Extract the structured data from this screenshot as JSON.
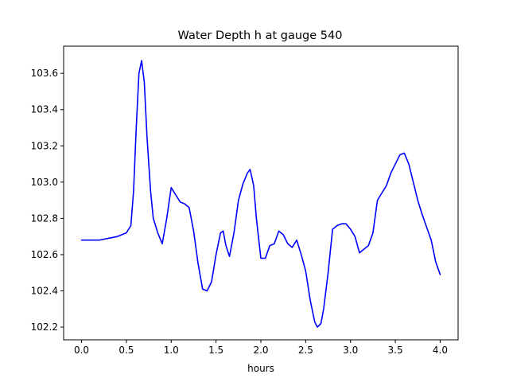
{
  "chart_data": {
    "type": "line",
    "title": "Water Depth h at gauge 540",
    "xlabel": "hours",
    "ylabel": "",
    "xlim": [
      -0.2,
      4.2
    ],
    "ylim": [
      102.13,
      103.75
    ],
    "xticks": [
      0.0,
      0.5,
      1.0,
      1.5,
      2.0,
      2.5,
      3.0,
      3.5,
      4.0
    ],
    "xtick_labels": [
      "0.0",
      "0.5",
      "1.0",
      "1.5",
      "2.0",
      "2.5",
      "3.0",
      "3.5",
      "4.0"
    ],
    "yticks": [
      102.2,
      102.4,
      102.6,
      102.8,
      103.0,
      103.2,
      103.4,
      103.6
    ],
    "ytick_labels": [
      "102.2",
      "102.4",
      "102.6",
      "102.8",
      "103.0",
      "103.2",
      "103.4",
      "103.6"
    ],
    "grid": false,
    "series": [
      {
        "name": "",
        "color": "#0000ff",
        "x": [
          0.0,
          0.2,
          0.3,
          0.4,
          0.5,
          0.55,
          0.58,
          0.61,
          0.64,
          0.67,
          0.7,
          0.73,
          0.77,
          0.8,
          0.85,
          0.9,
          0.95,
          1.0,
          1.05,
          1.1,
          1.15,
          1.2,
          1.25,
          1.3,
          1.35,
          1.4,
          1.45,
          1.5,
          1.55,
          1.58,
          1.61,
          1.65,
          1.7,
          1.75,
          1.8,
          1.85,
          1.88,
          1.92,
          1.95,
          2.0,
          2.05,
          2.1,
          2.15,
          2.2,
          2.25,
          2.3,
          2.35,
          2.4,
          2.45,
          2.5,
          2.55,
          2.6,
          2.63,
          2.67,
          2.7,
          2.75,
          2.8,
          2.85,
          2.9,
          2.95,
          3.0,
          3.05,
          3.1,
          3.15,
          3.2,
          3.25,
          3.3,
          3.35,
          3.4,
          3.45,
          3.5,
          3.55,
          3.6,
          3.65,
          3.7,
          3.75,
          3.8,
          3.85,
          3.9,
          3.95,
          4.0
        ],
        "y": [
          102.68,
          102.68,
          102.69,
          102.7,
          102.72,
          102.76,
          102.95,
          103.3,
          103.6,
          103.67,
          103.55,
          103.25,
          102.95,
          102.8,
          102.72,
          102.66,
          102.8,
          102.97,
          102.93,
          102.89,
          102.88,
          102.86,
          102.73,
          102.55,
          102.41,
          102.4,
          102.45,
          102.6,
          102.72,
          102.73,
          102.65,
          102.59,
          102.72,
          102.9,
          102.99,
          103.05,
          103.07,
          102.98,
          102.8,
          102.58,
          102.58,
          102.65,
          102.66,
          102.73,
          102.71,
          102.66,
          102.64,
          102.68,
          102.6,
          102.51,
          102.35,
          102.23,
          102.2,
          102.22,
          102.3,
          102.5,
          102.74,
          102.76,
          102.77,
          102.77,
          102.74,
          102.7,
          102.61,
          102.63,
          102.65,
          102.72,
          102.9,
          102.94,
          102.98,
          103.05,
          103.1,
          103.15,
          103.16,
          103.1,
          103.0,
          102.9,
          102.82,
          102.75,
          102.68,
          102.56,
          102.49
        ]
      }
    ]
  }
}
